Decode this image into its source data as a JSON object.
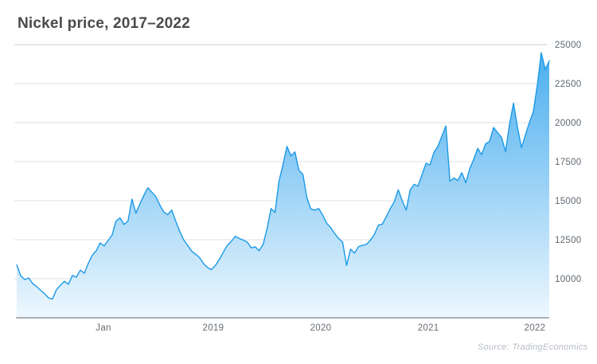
{
  "header": {
    "title": "Nickel price, 2017–2022"
  },
  "footer": {
    "source_label": "Source: TradingEconomics"
  },
  "chart_data": {
    "type": "area",
    "title": "Nickel price, 2017–2022",
    "xlabel": "",
    "ylabel": "",
    "x_range": [
      "2017",
      "2022"
    ],
    "ylim": [
      7550,
      25000
    ],
    "grid": "horizontal",
    "legend": "none",
    "y_axis_side": "right",
    "y_ticks": [
      25000,
      22500,
      20000,
      17500,
      15000,
      12500,
      10000
    ],
    "x_ticks": [
      {
        "label": "Jan",
        "pos": 0.163
      },
      {
        "label": "2019",
        "pos": 0.369
      },
      {
        "label": "2020",
        "pos": 0.571
      },
      {
        "label": "2021",
        "pos": 0.773
      },
      {
        "label": "2022",
        "pos": 0.973
      }
    ],
    "series": [
      {
        "name": "Nickel price",
        "values": [
          10890,
          10200,
          9950,
          10050,
          9700,
          9500,
          9260,
          9050,
          8780,
          8700,
          9300,
          9580,
          9840,
          9650,
          10210,
          10100,
          10550,
          10350,
          10990,
          11500,
          11800,
          12290,
          12100,
          12450,
          12800,
          13700,
          13900,
          13480,
          13700,
          15100,
          14200,
          14800,
          15350,
          15830,
          15550,
          15260,
          14740,
          14280,
          14110,
          14400,
          13700,
          13050,
          12500,
          12150,
          11770,
          11580,
          11350,
          10980,
          10730,
          10580,
          10850,
          11250,
          11700,
          12150,
          12400,
          12720,
          12580,
          12480,
          12350,
          11980,
          12050,
          11800,
          12200,
          13200,
          14500,
          14250,
          16250,
          17300,
          18480,
          17870,
          18130,
          16950,
          16700,
          15200,
          14480,
          14400,
          14500,
          14080,
          13560,
          13280,
          12900,
          12580,
          12350,
          10850,
          11900,
          11650,
          12050,
          12150,
          12200,
          12470,
          12830,
          13440,
          13500,
          13980,
          14500,
          14930,
          15700,
          15000,
          14400,
          15700,
          16050,
          15940,
          16680,
          17400,
          17290,
          18100,
          18500,
          19150,
          19790,
          16250,
          16450,
          16300,
          16800,
          16150,
          17050,
          17650,
          18350,
          17950,
          18650,
          18800,
          19690,
          19350,
          19050,
          18150,
          19900,
          21250,
          19700,
          18400,
          19200,
          20000,
          20700,
          22400,
          24480,
          23400,
          23960
        ]
      }
    ],
    "colors": {
      "line": "#1b99e7",
      "fill_top": "#2fa2ec",
      "fill_bottom": "#edf7fe",
      "grid": "#dde2e6",
      "grid_top": "#c7cdd2",
      "axis": "#a9b0b6",
      "title": "#4a4a4a",
      "tick_label": "#5e6972",
      "source": "#b7bdc5"
    }
  }
}
